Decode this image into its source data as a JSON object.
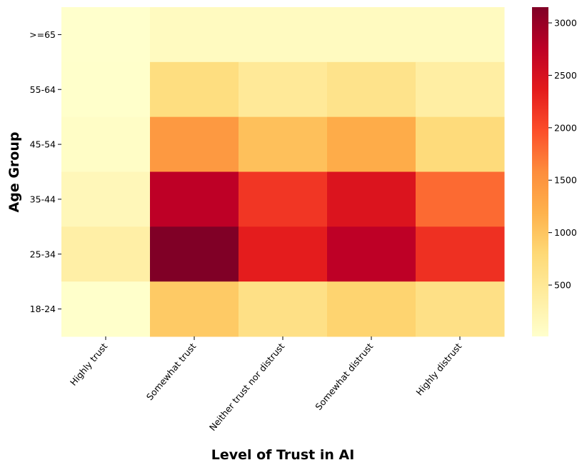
{
  "chart_data": {
    "type": "heatmap",
    "title": "",
    "xlabel": "Level of Trust in AI",
    "ylabel": "Age Group",
    "x_categories": [
      "Highly trust",
      "Somewhat trust",
      "Neither trust nor distrust",
      "Somewhat distrust",
      "Highly distrust"
    ],
    "y_categories": [
      ">=65",
      "55-64",
      "45-54",
      "35-44",
      "25-34",
      "18-24"
    ],
    "values": [
      [
        10,
        120,
        120,
        120,
        120
      ],
      [
        20,
        700,
        480,
        600,
        380
      ],
      [
        60,
        1450,
        1050,
        1250,
        750
      ],
      [
        180,
        2750,
        2150,
        2450,
        1800
      ],
      [
        350,
        3150,
        2350,
        2750,
        2200
      ],
      [
        15,
        950,
        650,
        850,
        650
      ]
    ],
    "colormap": "YlOrRd",
    "colorbar": {
      "vmin": 10,
      "vmax": 3150,
      "ticks": [
        500,
        1000,
        1500,
        2000,
        2500,
        3000
      ]
    }
  }
}
